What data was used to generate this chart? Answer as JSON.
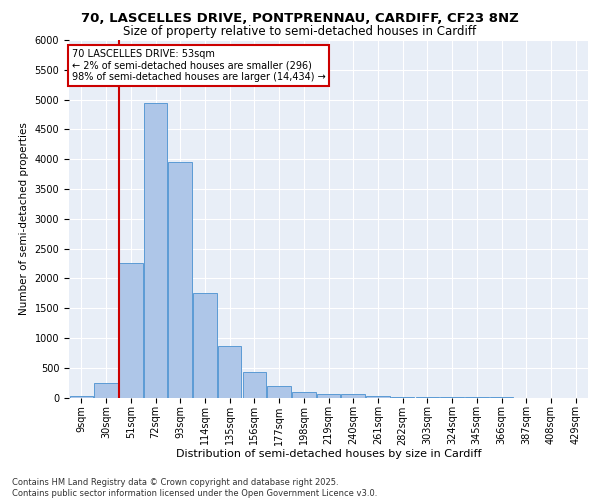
{
  "title_line1": "70, LASCELLES DRIVE, PONTPRENNAU, CARDIFF, CF23 8NZ",
  "title_line2": "Size of property relative to semi-detached houses in Cardiff",
  "xlabel": "Distribution of semi-detached houses by size in Cardiff",
  "ylabel": "Number of semi-detached properties",
  "footer_line1": "Contains HM Land Registry data © Crown copyright and database right 2025.",
  "footer_line2": "Contains public sector information licensed under the Open Government Licence v3.0.",
  "annotation_title": "70 LASCELLES DRIVE: 53sqm",
  "annotation_line1": "← 2% of semi-detached houses are smaller (296)",
  "annotation_line2": "98% of semi-detached houses are larger (14,434) →",
  "bar_labels": [
    "9sqm",
    "30sqm",
    "51sqm",
    "72sqm",
    "93sqm",
    "114sqm",
    "135sqm",
    "156sqm",
    "177sqm",
    "198sqm",
    "219sqm",
    "240sqm",
    "261sqm",
    "282sqm",
    "303sqm",
    "324sqm",
    "345sqm",
    "366sqm",
    "387sqm",
    "408sqm",
    "429sqm"
  ],
  "bar_values": [
    30,
    240,
    2250,
    4950,
    3960,
    1760,
    860,
    420,
    190,
    100,
    65,
    55,
    30,
    15,
    8,
    4,
    2,
    1,
    0,
    0,
    0
  ],
  "bar_color": "#aec6e8",
  "bar_edge_color": "#5b9bd5",
  "highlight_line_color": "#cc0000",
  "annotation_box_edge_color": "#cc0000",
  "background_color": "#e8eef7",
  "ylim": [
    0,
    6000
  ],
  "yticks": [
    0,
    500,
    1000,
    1500,
    2000,
    2500,
    3000,
    3500,
    4000,
    4500,
    5000,
    5500,
    6000
  ],
  "grid_color": "#ffffff",
  "grid_linewidth": 0.8,
  "title1_fontsize": 9.5,
  "title2_fontsize": 8.5,
  "xlabel_fontsize": 8,
  "ylabel_fontsize": 7.5,
  "tick_fontsize": 7,
  "footer_fontsize": 6
}
